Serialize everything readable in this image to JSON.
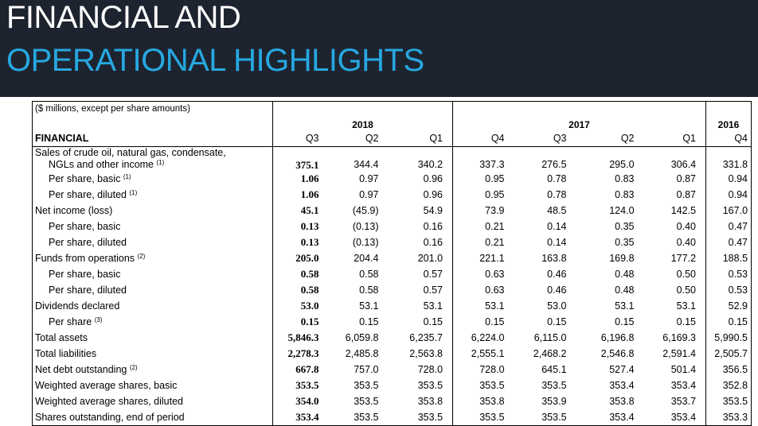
{
  "header": {
    "title_line1": "FINANCIAL AND",
    "title_line2": "OPERATIONAL HIGHLIGHTS"
  },
  "table": {
    "units_label": "($ millions, except per share amounts)",
    "section_label": "FINANCIAL",
    "years": [
      "2018",
      "2017",
      "2016"
    ],
    "quarters": [
      "Q3",
      "Q2",
      "Q1",
      "Q4",
      "Q3",
      "Q2",
      "Q1",
      "Q4"
    ],
    "rows": [
      {
        "label_l1": "Sales of crude oil, natural gas, condensate,",
        "label": "NGLs and other income",
        "sup": "(1)",
        "values": [
          "375.1",
          "344.4",
          "340.2",
          "337.3",
          "276.5",
          "295.0",
          "306.4",
          "331.8"
        ]
      },
      {
        "label": "Per share, basic",
        "sup": "(1)",
        "values": [
          "1.06",
          "0.97",
          "0.96",
          "0.95",
          "0.78",
          "0.83",
          "0.87",
          "0.94"
        ]
      },
      {
        "label": "Per share, diluted",
        "sup": "(1)",
        "values": [
          "1.06",
          "0.97",
          "0.96",
          "0.95",
          "0.78",
          "0.83",
          "0.87",
          "0.94"
        ]
      },
      {
        "label": "Net income (loss)",
        "sup": "",
        "values": [
          "45.1",
          "(45.9)",
          "54.9",
          "73.9",
          "48.5",
          "124.0",
          "142.5",
          "167.0"
        ]
      },
      {
        "label": "Per share, basic",
        "sup": "",
        "values": [
          "0.13",
          "(0.13)",
          "0.16",
          "0.21",
          "0.14",
          "0.35",
          "0.40",
          "0.47"
        ]
      },
      {
        "label": "Per share, diluted",
        "sup": "",
        "values": [
          "0.13",
          "(0.13)",
          "0.16",
          "0.21",
          "0.14",
          "0.35",
          "0.40",
          "0.47"
        ]
      },
      {
        "label": "Funds from operations",
        "sup": "(2)",
        "values": [
          "205.0",
          "204.4",
          "201.0",
          "221.1",
          "163.8",
          "169.8",
          "177.2",
          "188.5"
        ]
      },
      {
        "label": "Per share, basic",
        "sup": "",
        "values": [
          "0.58",
          "0.58",
          "0.57",
          "0.63",
          "0.46",
          "0.48",
          "0.50",
          "0.53"
        ]
      },
      {
        "label": "Per share, diluted",
        "sup": "",
        "values": [
          "0.58",
          "0.58",
          "0.57",
          "0.63",
          "0.46",
          "0.48",
          "0.50",
          "0.53"
        ]
      },
      {
        "label": "Dividends declared",
        "sup": "",
        "values": [
          "53.0",
          "53.1",
          "53.1",
          "53.1",
          "53.0",
          "53.1",
          "53.1",
          "52.9"
        ]
      },
      {
        "label": "Per share",
        "sup": "(3)",
        "values": [
          "0.15",
          "0.15",
          "0.15",
          "0.15",
          "0.15",
          "0.15",
          "0.15",
          "0.15"
        ]
      },
      {
        "label": "Total assets",
        "sup": "",
        "values": [
          "5,846.3",
          "6,059.8",
          "6,235.7",
          "6,224.0",
          "6,115.0",
          "6,196.8",
          "6,169.3",
          "5,990.5"
        ]
      },
      {
        "label": "Total liabilities",
        "sup": "",
        "values": [
          "2,278.3",
          "2,485.8",
          "2,563.8",
          "2,555.1",
          "2,468.2",
          "2,546.8",
          "2,591.4",
          "2,505.7"
        ]
      },
      {
        "label": "Net debt outstanding",
        "sup": "(2)",
        "values": [
          "667.8",
          "757.0",
          "728.0",
          "728.0",
          "645.1",
          "527.4",
          "501.4",
          "356.5"
        ]
      },
      {
        "label": "Weighted average shares, basic",
        "sup": "",
        "values": [
          "353.5",
          "353.5",
          "353.5",
          "353.5",
          "353.5",
          "353.4",
          "353.4",
          "352.8"
        ]
      },
      {
        "label": "Weighted average shares, diluted",
        "sup": "",
        "values": [
          "354.0",
          "353.5",
          "353.8",
          "353.8",
          "353.9",
          "353.8",
          "353.7",
          "353.5"
        ]
      },
      {
        "label": "Shares outstanding, end of period",
        "sup": "",
        "values": [
          "353.4",
          "353.5",
          "353.5",
          "353.5",
          "353.5",
          "353.4",
          "353.4",
          "353.3"
        ]
      }
    ]
  }
}
